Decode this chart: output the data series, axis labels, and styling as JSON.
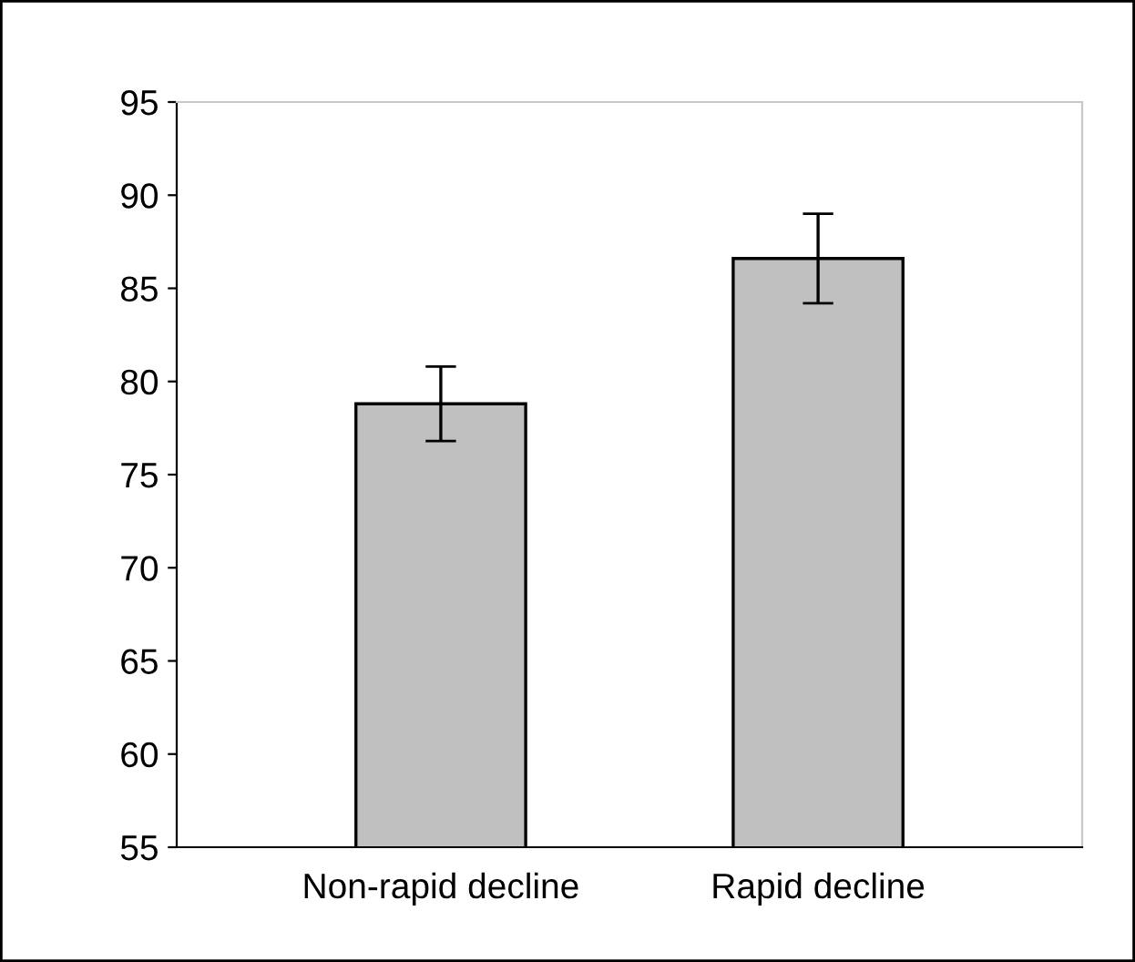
{
  "chart_data": {
    "type": "bar",
    "categories": [
      "Non-rapid decline",
      "Rapid decline"
    ],
    "values": [
      78.8,
      86.6
    ],
    "errors": [
      2.0,
      2.4
    ],
    "color": "#c0c0c0",
    "ylim": [
      55,
      95
    ],
    "yticks": [
      55,
      60,
      65,
      70,
      75,
      80,
      85,
      90,
      95
    ],
    "grid": false
  }
}
